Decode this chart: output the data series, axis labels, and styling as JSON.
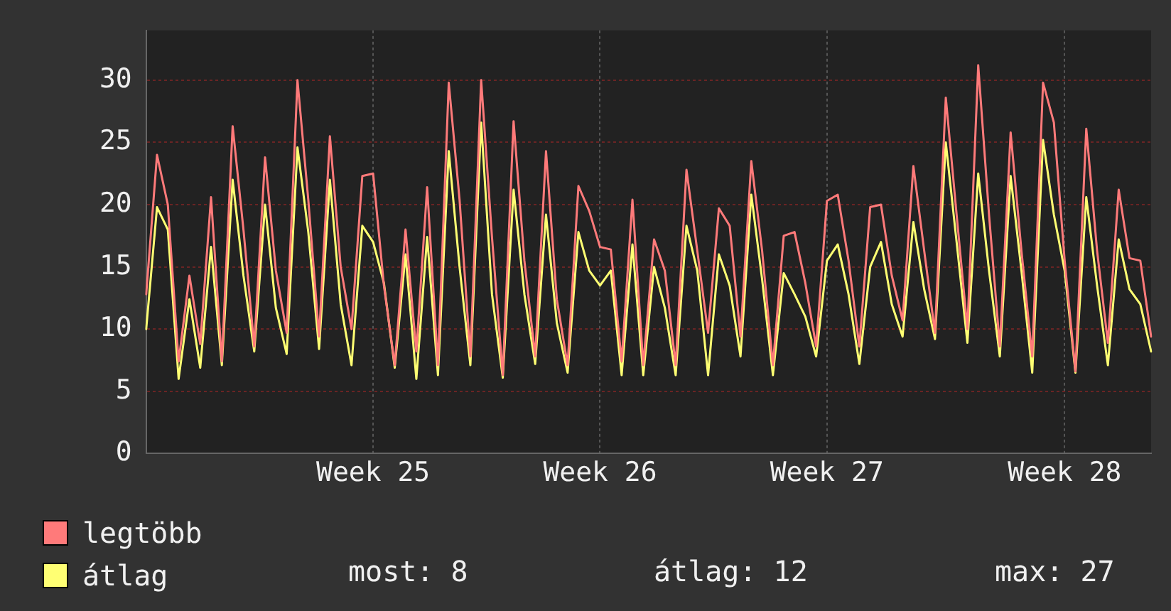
{
  "chart_data": {
    "type": "line",
    "categories": [
      null,
      null,
      null,
      null,
      null,
      null,
      null,
      null,
      null,
      null,
      null,
      null,
      null,
      null,
      null,
      null,
      null,
      null,
      null,
      null,
      null,
      "Week 25",
      null,
      null,
      null,
      null,
      null,
      null,
      null,
      null,
      null,
      null,
      null,
      null,
      null,
      null,
      null,
      null,
      null,
      null,
      null,
      null,
      "Week 26",
      null,
      null,
      null,
      null,
      null,
      null,
      null,
      null,
      null,
      null,
      null,
      null,
      null,
      null,
      null,
      null,
      null,
      null,
      null,
      null,
      "Week 27",
      null,
      null,
      null,
      null,
      null,
      null,
      null,
      null,
      null,
      null,
      null,
      null,
      null,
      null,
      null,
      null,
      null,
      null,
      null,
      null,
      null,
      "Week 28",
      null,
      null,
      null,
      null,
      null,
      null,
      null,
      null
    ],
    "series": [
      {
        "name": "legtöbb",
        "color": "#ff7a7a",
        "values": [
          12.8,
          24,
          20,
          7.4,
          14.3,
          8.8,
          20.6,
          7.4,
          26.3,
          18,
          8.6,
          23.8,
          14.7,
          9.7,
          30,
          20.4,
          9.4,
          25.5,
          15,
          10,
          22.3,
          22.5,
          13.5,
          7.1,
          18,
          8.2,
          21.4,
          7.1,
          29.8,
          20.4,
          7.8,
          30,
          17.4,
          6.3,
          26.7,
          15.5,
          7.8,
          24.3,
          12.4,
          7.1,
          21.5,
          19.5,
          16.6,
          16.4,
          7.4,
          20.4,
          7.1,
          17.2,
          14.7,
          7.1,
          22.8,
          16.3,
          9.7,
          19.7,
          18.3,
          9.4,
          23.5,
          16.3,
          7.1,
          17.5,
          17.8,
          13.7,
          8.6,
          20.3,
          20.8,
          15.5,
          8.6,
          19.8,
          20,
          14.3,
          10.7,
          23.1,
          16.3,
          9.7,
          28.6,
          19.2,
          10,
          31.2,
          19.2,
          8.6,
          25.8,
          16.3,
          7.8,
          29.8,
          26.6,
          15.5,
          6.6,
          26.1,
          16.3,
          8.9,
          21.2,
          15.7,
          15.5,
          9.4
        ]
      },
      {
        "name": "átlag",
        "color": "#ffff73",
        "values": [
          10,
          19.8,
          18,
          6,
          12.4,
          6.9,
          16.6,
          7.1,
          22,
          14.3,
          8.2,
          20,
          11.7,
          8,
          24.6,
          17.8,
          8.4,
          22,
          12,
          7.1,
          18.3,
          17,
          13.7,
          6.9,
          16,
          6,
          17.4,
          6.3,
          24.3,
          15,
          7.1,
          26.6,
          12.8,
          6.1,
          21.2,
          12.8,
          7.2,
          19.2,
          10.5,
          6.5,
          17.8,
          14.7,
          13.5,
          14.7,
          6.3,
          16.8,
          6.3,
          15,
          11.7,
          6.3,
          18.3,
          14.7,
          6.3,
          16,
          13.5,
          7.8,
          20.8,
          14,
          6.3,
          14.5,
          12.8,
          11,
          7.8,
          15.5,
          16.8,
          12.8,
          7.2,
          15,
          17,
          12,
          9.4,
          18.6,
          13.2,
          9.2,
          25,
          17,
          8.9,
          22.5,
          14.7,
          7.8,
          22.3,
          14.7,
          6.5,
          25.2,
          19.2,
          14.7,
          6.5,
          20.6,
          13.5,
          7.1,
          17.2,
          13.2,
          12,
          8.2
        ]
      }
    ],
    "ylim": [
      0,
      34
    ],
    "yticks": [
      0,
      5,
      10,
      15,
      20,
      25,
      30
    ],
    "grid": true,
    "legend": "bottom left",
    "marker": "none",
    "line_style": "solid",
    "annotations": [
      "most: 8",
      "átlag: 12",
      "max: 27"
    ]
  }
}
